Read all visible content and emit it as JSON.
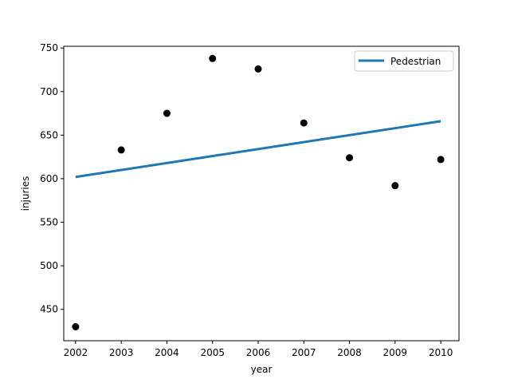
{
  "chart_data": {
    "type": "scatter",
    "title": "",
    "xlabel": "year",
    "ylabel": "injuries",
    "xlim": [
      2001.74,
      2010.4
    ],
    "ylim": [
      414,
      752
    ],
    "x_ticks": [
      2002,
      2003,
      2004,
      2005,
      2006,
      2007,
      2008,
      2009,
      2010
    ],
    "y_ticks": [
      450,
      500,
      550,
      600,
      650,
      700,
      750
    ],
    "grid": false,
    "legend_position": "top-right",
    "points": {
      "color": "#000000",
      "x": [
        2002,
        2003,
        2004,
        2005,
        2006,
        2007,
        2008,
        2009,
        2010
      ],
      "y": [
        430,
        633,
        675,
        738,
        726,
        664,
        624,
        592,
        622
      ]
    },
    "series": [
      {
        "name": "Pedestrian",
        "type": "line",
        "color": "#1f77b4",
        "x": [
          2002,
          2010
        ],
        "y": [
          602,
          666
        ]
      }
    ]
  }
}
